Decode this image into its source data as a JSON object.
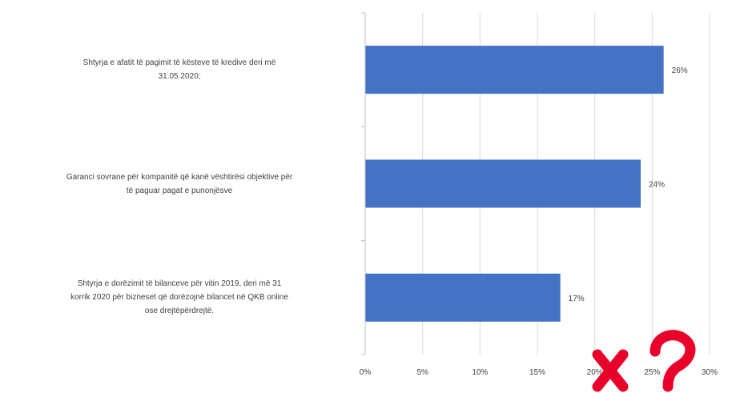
{
  "chart_data": {
    "type": "bar",
    "orientation": "horizontal",
    "categories": [
      "Shtyrja e afatit të pagimit të kësteve të kredive deri më 31.05.2020;",
      "Garanci sovrane për kompanitë që kanë vështirësi objektive për të paguar pagat e punonjësve",
      "Shtyrja e dorëzimit të bilanceve për vitin 2019, deri më 31 korrik 2020 për bizneset që dorëzojnë bilancet në QKB online ose drejtëpërdrejtë."
    ],
    "category_lines": [
      [
        "Shtyrja e afatit të pagimit të kësteve të kredive deri më",
        "31.05.2020;"
      ],
      [
        "Garanci sovrane për kompanitë që kanë vështirësi objektive për",
        "të paguar pagat e punonjësve"
      ],
      [
        "Shtyrja e dorëzimit të bilanceve për vitin 2019, deri më 31",
        "korrik 2020 për bizneset që dorëzojnë bilancet në QKB online",
        "ose drejtëpërdrejtë."
      ]
    ],
    "values": [
      26,
      24,
      17
    ],
    "value_labels": [
      "26%",
      "24%",
      "17%"
    ],
    "xlim": [
      0,
      30
    ],
    "xticks": [
      "0%",
      "5%",
      "10%",
      "15%",
      "20%",
      "25%",
      "30%"
    ],
    "title": "",
    "xlabel": "",
    "ylabel": "",
    "grid": "vertical",
    "legend": "none",
    "bar_color": "#4472c4"
  },
  "watermark": {
    "color": "#e8002a"
  }
}
